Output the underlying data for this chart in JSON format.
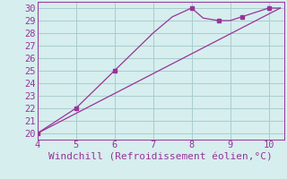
{
  "line1_x": [
    4,
    5,
    6,
    6.5,
    7,
    7.5,
    8,
    8.3,
    8.7,
    9,
    9.3,
    10,
    10.3
  ],
  "line1_y": [
    20,
    22,
    25,
    26.5,
    28,
    29.3,
    30,
    29.2,
    29.0,
    29.0,
    29.3,
    30,
    30
  ],
  "line2_x": [
    4,
    10.3
  ],
  "line2_y": [
    20,
    30
  ],
  "markers_x": [
    4,
    5,
    6,
    8,
    8.7,
    9.3,
    10
  ],
  "markers_y": [
    20,
    22,
    25,
    30,
    29.0,
    29.3,
    30
  ],
  "line_color": "#993399",
  "marker_color": "#993399",
  "bg_color": "#d6eeee",
  "grid_color": "#aacccc",
  "xlabel": "Windchill (Refroidissement éolien,°C)",
  "xlim": [
    4,
    10.4
  ],
  "ylim": [
    19.5,
    30.5
  ],
  "xticks": [
    4,
    5,
    6,
    7,
    8,
    9,
    10
  ],
  "yticks": [
    20,
    21,
    22,
    23,
    24,
    25,
    26,
    27,
    28,
    29,
    30
  ],
  "font_color": "#993399",
  "font_size": 7.5,
  "xlabel_fontsize": 8
}
